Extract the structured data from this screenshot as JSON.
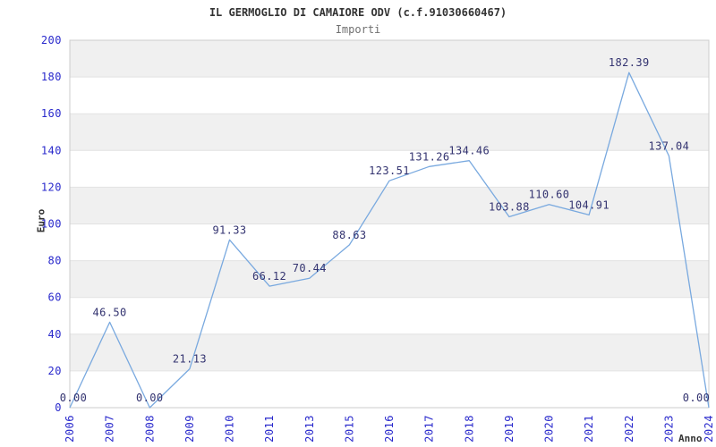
{
  "chart": {
    "title": "IL GERMOGLIO DI CAMAIORE ODV (c.f.91030660467)",
    "subtitle": "Importi",
    "ylabel": "Euro",
    "xlabel": "Anno"
  },
  "chart_data": {
    "type": "line",
    "title": "IL GERMOGLIO DI CAMAIORE ODV (c.f.91030660467)",
    "subtitle": "Importi",
    "xlabel": "Anno",
    "ylabel": "Euro",
    "categories": [
      "2006",
      "2007",
      "2008",
      "2009",
      "2010",
      "2011",
      "2013",
      "2015",
      "2016",
      "2017",
      "2018",
      "2019",
      "2020",
      "2021",
      "2022",
      "2023",
      "2024"
    ],
    "values": [
      0.0,
      46.5,
      0.0,
      21.13,
      91.33,
      66.12,
      70.44,
      88.63,
      123.51,
      131.26,
      134.46,
      103.88,
      110.6,
      104.91,
      182.39,
      137.04,
      0.0
    ],
    "value_labels": [
      "0.00",
      "46.50",
      "0.00",
      "21.13",
      "91.33",
      "66.12",
      "70.44",
      "88.63",
      "123.51",
      "131.26",
      "134.46",
      "103.88",
      "110.60",
      "104.91",
      "182.39",
      "137.04",
      "0.00"
    ],
    "ylim": [
      0,
      200
    ],
    "ytick_step": 20,
    "grid": "horizontal-alternating-bands",
    "legend": "none",
    "colors": {
      "line": "#79a9df",
      "tick_label": "#2929cc",
      "point_label": "#333370",
      "band": "#f0f0f0",
      "gridline": "#e2e2e2",
      "plot_border": "#cccccc",
      "title": "#333333",
      "subtitle": "#707070",
      "axis_title": "#333333",
      "background": "#ffffff"
    }
  }
}
